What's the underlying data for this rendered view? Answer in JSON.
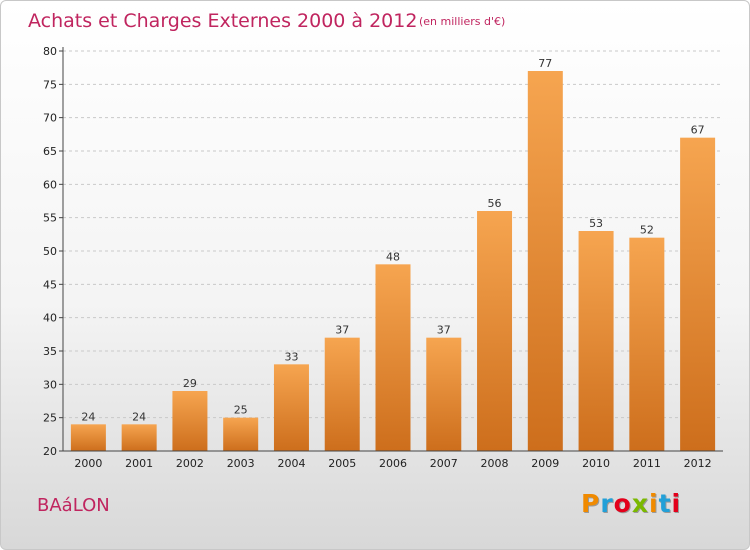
{
  "chart_data": {
    "type": "bar",
    "title": "Achats et Charges Externes 2000 à 2012",
    "subtitle": "(en milliers d'€)",
    "categories": [
      "2000",
      "2001",
      "2002",
      "2003",
      "2004",
      "2005",
      "2006",
      "2007",
      "2008",
      "2009",
      "2010",
      "2011",
      "2012"
    ],
    "values": [
      24,
      24,
      29,
      25,
      33,
      37,
      48,
      37,
      56,
      77,
      53,
      52,
      67
    ],
    "ylim": [
      20,
      80
    ],
    "yticks": [
      20,
      25,
      30,
      35,
      40,
      45,
      50,
      55,
      60,
      65,
      70,
      75,
      80
    ],
    "xlabel": "",
    "ylabel": "",
    "grid": "horizontal-dashed",
    "bar_color_top": "#f6a550",
    "bar_color_bottom": "#cd6e1c"
  },
  "footer": {
    "commune": "BAáLON",
    "brand": "Proxiti",
    "brand_colors": [
      "#f08a00",
      "#22a0d8",
      "#e3001b",
      "#7ab800",
      "#f08a00",
      "#22a0d8",
      "#e3001b"
    ]
  }
}
